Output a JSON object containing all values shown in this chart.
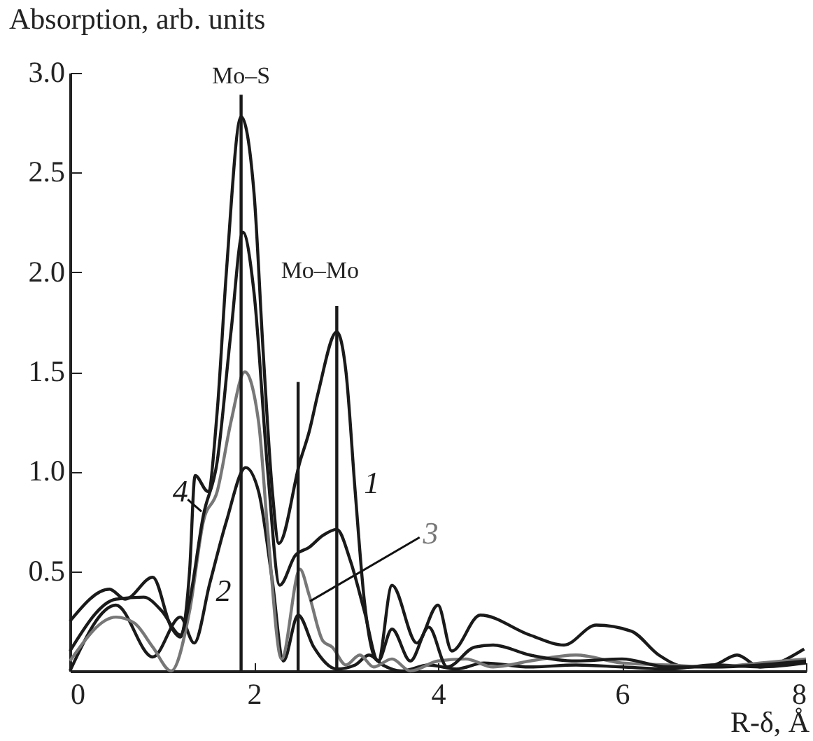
{
  "chart_data": {
    "type": "line",
    "xlabel": "R-δ, Å",
    "ylabel": "Absorption, arb. units",
    "xlim": [
      0,
      8
    ],
    "xticks": [
      0,
      2,
      4,
      6,
      8
    ],
    "ylim": [
      0,
      3
    ],
    "yticks": [
      0.5,
      {
        "value": 1,
        "label": "1.0"
      },
      1.5,
      {
        "value": 2,
        "label": "2.0"
      },
      2.5,
      {
        "value": 3,
        "label": "3.0"
      }
    ],
    "series": [
      {
        "name": "1",
        "color": "#1a1a1a",
        "x": [
          0,
          0.43,
          0.6,
          0.9,
          1.1,
          1.2,
          1.3,
          1.36,
          1.5,
          1.6,
          1.7,
          1.86,
          2.0,
          2.1,
          2.2,
          2.27,
          2.5,
          2.6,
          2.7,
          2.9,
          3.0,
          3.1,
          3.2,
          3.3,
          3.35,
          3.5,
          3.77,
          4.0,
          4.15,
          4.46,
          5.0,
          5.37,
          5.72,
          6.1,
          6.4,
          6.7,
          7.0,
          7.25,
          7.5,
          7.98
        ],
        "values": [
          0.25,
          0.41,
          0.36,
          0.47,
          0.22,
          0.17,
          0.5,
          0.98,
          0.9,
          1.3,
          2.0,
          2.78,
          2.4,
          1.6,
          0.9,
          0.64,
          1.05,
          1.2,
          1.4,
          1.7,
          1.5,
          0.9,
          0.35,
          0.08,
          0.05,
          0.43,
          0.14,
          0.33,
          0.1,
          0.28,
          0.18,
          0.13,
          0.23,
          0.2,
          0.08,
          0.02,
          0.03,
          0.08,
          0.02,
          0.11
        ]
      },
      {
        "name": "2",
        "color": "#1a1a1a",
        "x": [
          0,
          0.5,
          0.9,
          1.2,
          1.35,
          1.52,
          1.7,
          1.91,
          2.05,
          2.2,
          2.32,
          2.48,
          2.65,
          2.9,
          3.1,
          3.25,
          3.4,
          3.6,
          3.9,
          4.2,
          4.5,
          5.0,
          5.5,
          6.0,
          6.5,
          7.0,
          7.5,
          8.0
        ],
        "values": [
          0.0,
          0.33,
          0.07,
          0.27,
          0.14,
          0.44,
          0.75,
          1.02,
          0.9,
          0.45,
          0.05,
          0.28,
          0.12,
          0.01,
          0.03,
          0.08,
          0.03,
          0.0,
          0.03,
          0.01,
          0.04,
          0.02,
          0.03,
          0.02,
          0.01,
          0.03,
          0.02,
          0.04
        ]
      },
      {
        "name": "3",
        "color": "#777777",
        "x": [
          0,
          0.5,
          0.7,
          0.9,
          1.1,
          1.3,
          1.45,
          1.6,
          1.75,
          1.9,
          2.05,
          2.15,
          2.3,
          2.5,
          2.6,
          2.75,
          2.85,
          3.0,
          3.15,
          3.3,
          3.5,
          3.7,
          4.0,
          4.3,
          4.6,
          5.0,
          5.5,
          6.0,
          6.5,
          7.0,
          7.5,
          8.0
        ],
        "values": [
          0.05,
          0.27,
          0.24,
          0.12,
          0.0,
          0.3,
          0.75,
          0.9,
          1.25,
          1.5,
          1.25,
          0.7,
          0.06,
          0.51,
          0.38,
          0.15,
          0.12,
          0.03,
          0.08,
          0.02,
          0.06,
          0.0,
          0.05,
          0.06,
          0.02,
          0.05,
          0.08,
          0.04,
          0.03,
          0.02,
          0.04,
          0.06
        ]
      },
      {
        "name": "4",
        "color": "#1a1a1a",
        "x": [
          0,
          0.5,
          0.8,
          1.0,
          1.2,
          1.3,
          1.45,
          1.6,
          1.75,
          1.88,
          2.0,
          2.15,
          2.28,
          2.45,
          2.6,
          2.75,
          2.9,
          3.05,
          3.2,
          3.35,
          3.5,
          3.7,
          3.9,
          4.1,
          4.4,
          4.6,
          5.0,
          5.5,
          6.0,
          6.5,
          7.0,
          7.5,
          8.0
        ],
        "values": [
          0.1,
          0.36,
          0.37,
          0.3,
          0.18,
          0.35,
          0.78,
          1.05,
          1.7,
          2.2,
          1.9,
          1.0,
          0.43,
          0.58,
          0.62,
          0.68,
          0.71,
          0.55,
          0.3,
          0.05,
          0.21,
          0.05,
          0.22,
          0.02,
          0.12,
          0.13,
          0.08,
          0.05,
          0.06,
          0.02,
          0.02,
          0.03,
          0.05
        ]
      },
      {
        "type": "bar",
        "color": "#1a1a1a",
        "x": [
          1.86,
          2.48,
          2.9
        ],
        "values": [
          2.89,
          1.45,
          1.83
        ]
      }
    ],
    "annotations": [
      {
        "text": "Mo–S",
        "x": 1.86,
        "y": 2.89
      },
      {
        "text": "Mo–Mo",
        "x": 2.9,
        "y": 1.83
      }
    ]
  }
}
